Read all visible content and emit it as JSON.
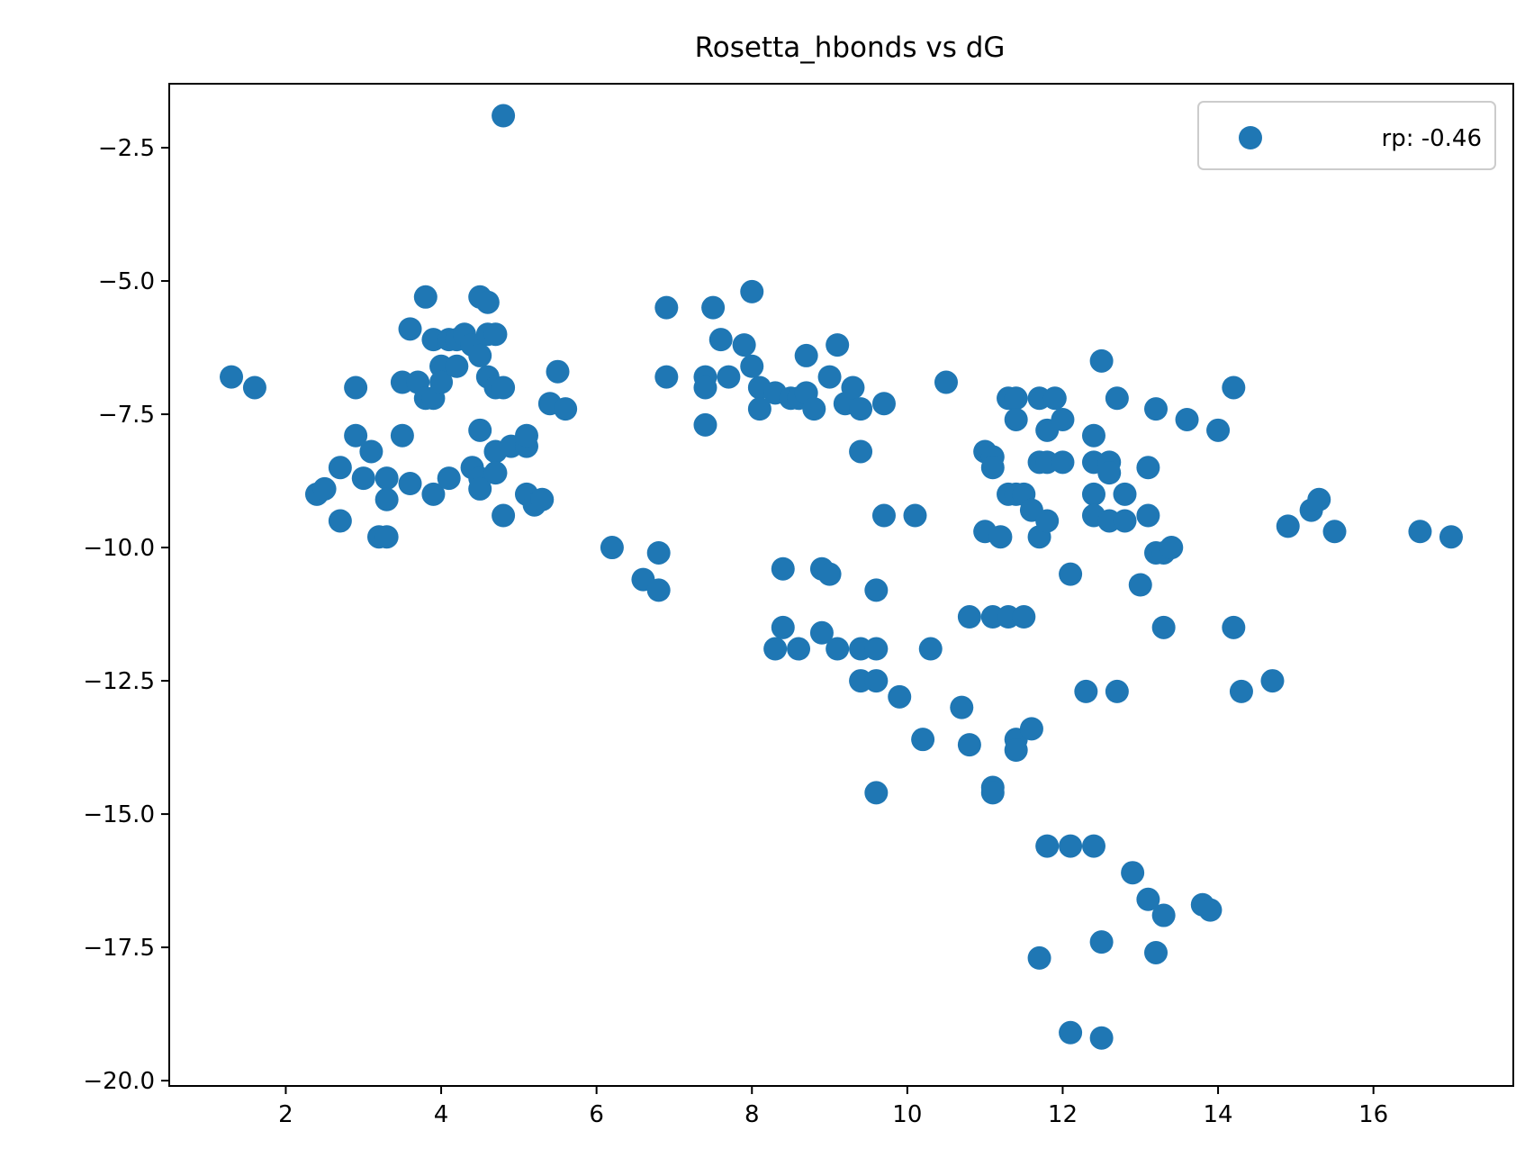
{
  "chart_data": {
    "type": "scatter",
    "title": "Rosetta_hbonds vs dG",
    "xlabel": "",
    "ylabel": "",
    "xlim": [
      0.5,
      17.8
    ],
    "ylim": [
      -20.1,
      -1.3
    ],
    "x_ticks": [
      2,
      4,
      6,
      8,
      10,
      12,
      14,
      16
    ],
    "x_tick_labels": [
      "2",
      "4",
      "6",
      "8",
      "10",
      "12",
      "14",
      "16"
    ],
    "y_ticks": [
      -2.5,
      -5.0,
      -7.5,
      -10.0,
      -12.5,
      -15.0,
      -17.5,
      -20.0
    ],
    "y_tick_labels": [
      "−2.5",
      "−5.0",
      "−7.5",
      "−10.0",
      "−12.5",
      "−15.0",
      "−17.5",
      "−20.0"
    ],
    "grid": false,
    "legend_position": "top-right",
    "series": [
      {
        "name": "rp: -0.46",
        "color": "#1f77b4",
        "points": [
          [
            1.3,
            -6.8
          ],
          [
            1.6,
            -7.0
          ],
          [
            2.4,
            -9.0
          ],
          [
            2.5,
            -8.9
          ],
          [
            2.7,
            -8.5
          ],
          [
            2.7,
            -9.5
          ],
          [
            2.9,
            -7.0
          ],
          [
            2.9,
            -7.9
          ],
          [
            3.0,
            -8.7
          ],
          [
            3.1,
            -8.2
          ],
          [
            3.2,
            -9.8
          ],
          [
            3.3,
            -9.8
          ],
          [
            3.3,
            -8.7
          ],
          [
            3.3,
            -9.1
          ],
          [
            3.5,
            -6.9
          ],
          [
            3.5,
            -7.9
          ],
          [
            3.6,
            -5.9
          ],
          [
            3.6,
            -8.8
          ],
          [
            3.7,
            -6.9
          ],
          [
            3.8,
            -7.2
          ],
          [
            3.8,
            -5.3
          ],
          [
            3.9,
            -6.1
          ],
          [
            3.9,
            -7.2
          ],
          [
            3.9,
            -9.0
          ],
          [
            4.0,
            -6.6
          ],
          [
            4.0,
            -6.9
          ],
          [
            4.1,
            -6.1
          ],
          [
            4.1,
            -8.7
          ],
          [
            4.2,
            -6.6
          ],
          [
            4.2,
            -6.1
          ],
          [
            4.3,
            -6.0
          ],
          [
            4.4,
            -6.2
          ],
          [
            4.4,
            -8.5
          ],
          [
            4.5,
            -6.4
          ],
          [
            4.5,
            -5.3
          ],
          [
            4.5,
            -7.8
          ],
          [
            4.5,
            -8.7
          ],
          [
            4.5,
            -8.9
          ],
          [
            4.6,
            -5.4
          ],
          [
            4.6,
            -6.0
          ],
          [
            4.6,
            -6.8
          ],
          [
            4.7,
            -6.0
          ],
          [
            4.7,
            -7.0
          ],
          [
            4.7,
            -8.2
          ],
          [
            4.7,
            -8.6
          ],
          [
            4.8,
            -1.9
          ],
          [
            4.8,
            -7.0
          ],
          [
            4.8,
            -9.4
          ],
          [
            4.9,
            -8.1
          ],
          [
            5.1,
            -8.1
          ],
          [
            5.1,
            -7.9
          ],
          [
            5.1,
            -9.0
          ],
          [
            5.2,
            -9.2
          ],
          [
            5.3,
            -9.1
          ],
          [
            5.4,
            -7.3
          ],
          [
            5.5,
            -6.7
          ],
          [
            5.6,
            -7.4
          ],
          [
            6.2,
            -10.0
          ],
          [
            6.6,
            -10.6
          ],
          [
            6.8,
            -10.1
          ],
          [
            6.8,
            -10.8
          ],
          [
            6.9,
            -5.5
          ],
          [
            6.9,
            -6.8
          ],
          [
            7.4,
            -6.8
          ],
          [
            7.4,
            -7.0
          ],
          [
            7.4,
            -7.7
          ],
          [
            7.5,
            -5.5
          ],
          [
            7.6,
            -6.1
          ],
          [
            7.7,
            -6.8
          ],
          [
            7.9,
            -6.2
          ],
          [
            8.0,
            -5.2
          ],
          [
            8.0,
            -6.6
          ],
          [
            8.1,
            -7.0
          ],
          [
            8.1,
            -7.4
          ],
          [
            8.3,
            -7.1
          ],
          [
            8.3,
            -11.9
          ],
          [
            8.4,
            -10.4
          ],
          [
            8.4,
            -11.5
          ],
          [
            8.5,
            -7.2
          ],
          [
            8.6,
            -7.2
          ],
          [
            8.6,
            -11.9
          ],
          [
            8.7,
            -6.4
          ],
          [
            8.7,
            -7.1
          ],
          [
            8.8,
            -7.4
          ],
          [
            8.9,
            -10.4
          ],
          [
            8.9,
            -11.6
          ],
          [
            9.0,
            -6.8
          ],
          [
            9.0,
            -10.5
          ],
          [
            9.1,
            -6.2
          ],
          [
            9.1,
            -11.9
          ],
          [
            9.2,
            -7.3
          ],
          [
            9.3,
            -7.0
          ],
          [
            9.4,
            -7.4
          ],
          [
            9.4,
            -8.2
          ],
          [
            9.4,
            -11.9
          ],
          [
            9.4,
            -12.5
          ],
          [
            9.6,
            -10.8
          ],
          [
            9.6,
            -11.9
          ],
          [
            9.6,
            -12.5
          ],
          [
            9.6,
            -14.6
          ],
          [
            9.7,
            -7.3
          ],
          [
            9.7,
            -9.4
          ],
          [
            9.9,
            -12.8
          ],
          [
            10.1,
            -9.4
          ],
          [
            10.2,
            -13.6
          ],
          [
            10.3,
            -11.9
          ],
          [
            10.5,
            -6.9
          ],
          [
            10.7,
            -13.0
          ],
          [
            10.8,
            -11.3
          ],
          [
            10.8,
            -13.7
          ],
          [
            11.0,
            -8.2
          ],
          [
            11.0,
            -9.7
          ],
          [
            11.1,
            -8.3
          ],
          [
            11.1,
            -8.5
          ],
          [
            11.1,
            -11.3
          ],
          [
            11.1,
            -14.5
          ],
          [
            11.1,
            -14.6
          ],
          [
            11.2,
            -9.8
          ],
          [
            11.3,
            -7.2
          ],
          [
            11.3,
            -9.0
          ],
          [
            11.3,
            -11.3
          ],
          [
            11.4,
            -7.2
          ],
          [
            11.4,
            -7.6
          ],
          [
            11.4,
            -9.0
          ],
          [
            11.4,
            -13.6
          ],
          [
            11.4,
            -13.8
          ],
          [
            11.5,
            -11.3
          ],
          [
            11.5,
            -9.0
          ],
          [
            11.6,
            -9.3
          ],
          [
            11.6,
            -13.4
          ],
          [
            11.7,
            -7.2
          ],
          [
            11.7,
            -8.4
          ],
          [
            11.7,
            -9.8
          ],
          [
            11.7,
            -17.7
          ],
          [
            11.8,
            -7.8
          ],
          [
            11.8,
            -8.4
          ],
          [
            11.8,
            -9.5
          ],
          [
            11.8,
            -15.6
          ],
          [
            11.9,
            -7.2
          ],
          [
            12.0,
            -7.6
          ],
          [
            12.0,
            -8.4
          ],
          [
            12.1,
            -10.5
          ],
          [
            12.1,
            -15.6
          ],
          [
            12.1,
            -19.1
          ],
          [
            12.3,
            -12.7
          ],
          [
            12.4,
            -7.9
          ],
          [
            12.4,
            -8.4
          ],
          [
            12.4,
            -9.0
          ],
          [
            12.4,
            -9.4
          ],
          [
            12.4,
            -15.6
          ],
          [
            12.5,
            -6.5
          ],
          [
            12.5,
            -17.4
          ],
          [
            12.5,
            -19.2
          ],
          [
            12.6,
            -8.4
          ],
          [
            12.6,
            -8.6
          ],
          [
            12.6,
            -9.5
          ],
          [
            12.7,
            -7.2
          ],
          [
            12.7,
            -12.7
          ],
          [
            12.8,
            -9.0
          ],
          [
            12.8,
            -9.5
          ],
          [
            12.9,
            -16.1
          ],
          [
            13.0,
            -10.7
          ],
          [
            13.1,
            -8.5
          ],
          [
            13.1,
            -9.4
          ],
          [
            13.1,
            -16.6
          ],
          [
            13.2,
            -7.4
          ],
          [
            13.2,
            -10.1
          ],
          [
            13.2,
            -17.6
          ],
          [
            13.3,
            -10.1
          ],
          [
            13.3,
            -11.5
          ],
          [
            13.3,
            -16.9
          ],
          [
            13.4,
            -10.0
          ],
          [
            13.6,
            -7.6
          ],
          [
            13.8,
            -16.7
          ],
          [
            13.9,
            -16.8
          ],
          [
            14.0,
            -7.8
          ],
          [
            14.2,
            -7.0
          ],
          [
            14.2,
            -11.5
          ],
          [
            14.3,
            -12.7
          ],
          [
            14.7,
            -12.5
          ],
          [
            14.9,
            -9.6
          ],
          [
            15.2,
            -9.3
          ],
          [
            15.3,
            -9.1
          ],
          [
            15.5,
            -9.7
          ],
          [
            16.6,
            -9.7
          ],
          [
            17.0,
            -9.8
          ]
        ]
      }
    ]
  }
}
